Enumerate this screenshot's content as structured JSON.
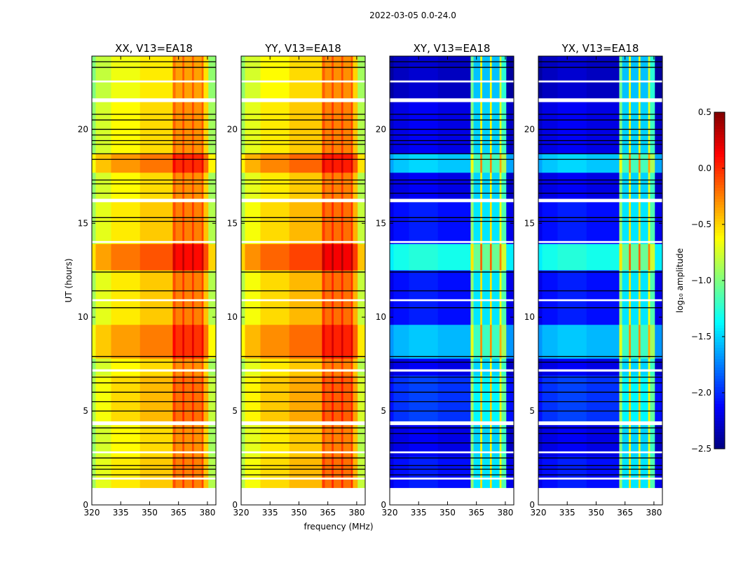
{
  "chart_data": {
    "type": "heatmap",
    "title": "2022-03-05 0.0-24.0",
    "xlabel": "frequency (MHz)",
    "ylabel": "UT (hours)",
    "xlim": [
      320,
      384.4
    ],
    "ylim": [
      0,
      23.9
    ],
    "xticks": [
      320,
      335,
      350,
      365,
      380
    ],
    "yticks": [
      0,
      5,
      10,
      15,
      20
    ],
    "panels": [
      {
        "title": "XX, V13=EA18",
        "kind": "parallel"
      },
      {
        "title": "YY, V13=EA18",
        "kind": "parallel"
      },
      {
        "title": "XY, V13=EA18",
        "kind": "cross"
      },
      {
        "title": "YX, V13=EA18",
        "kind": "cross"
      }
    ],
    "freq_edges": [
      320,
      322,
      330,
      345,
      362,
      363.5,
      367,
      368,
      372,
      373,
      377,
      378,
      380.5,
      384.4
    ],
    "levels": {
      "parallel": [
        -0.95,
        -0.75,
        -0.62,
        -0.52,
        -0.15,
        -0.3,
        -0.08,
        -0.3,
        -0.08,
        -0.3,
        -0.12,
        -0.5,
        -0.9
      ],
      "cross": [
        -2.3,
        -2.2,
        -2.15,
        -2.2,
        -1.0,
        -1.5,
        -0.6,
        -1.5,
        -0.6,
        -1.5,
        -0.7,
        -1.2,
        -2.3
      ]
    },
    "time_blocks": [
      [
        0.9,
        2.6,
        0.05
      ],
      [
        2.6,
        4.3,
        0.0
      ],
      [
        4.3,
        6.9,
        0.1
      ],
      [
        6.9,
        7.8,
        0.0
      ],
      [
        7.8,
        9.6,
        0.28
      ],
      [
        9.6,
        12.5,
        0.05
      ],
      [
        12.5,
        13.9,
        0.4
      ],
      [
        13.9,
        16.2,
        0.05
      ],
      [
        16.2,
        17.7,
        0.0
      ],
      [
        17.7,
        18.7,
        0.3
      ],
      [
        18.7,
        21.5,
        0.0
      ],
      [
        21.5,
        23.9,
        -0.05
      ]
    ],
    "flagged_hours": [
      [
        0,
        0.9
      ],
      [
        1.35,
        1.45
      ],
      [
        2.75,
        2.85
      ],
      [
        4.25,
        4.45
      ],
      [
        7.1,
        7.22
      ],
      [
        10.85,
        10.95
      ],
      [
        13.95,
        14.05
      ],
      [
        16.12,
        16.3
      ],
      [
        21.45,
        21.65
      ],
      [
        22.5,
        22.6
      ]
    ],
    "black_line_hours": [
      1.6,
      1.9,
      2.1,
      2.5,
      3.3,
      3.8,
      4.1,
      5.0,
      5.5,
      6.0,
      6.5,
      6.8,
      7.6,
      7.9,
      10.5,
      11.4,
      12.4,
      15.1,
      15.3,
      16.6,
      17.1,
      17.3,
      18.4,
      18.7,
      19.2,
      19.4,
      19.7,
      20.0,
      20.5,
      20.8,
      23.3,
      23.6
    ],
    "colorbar": {
      "label": "log₁₀ amplitude",
      "range": [
        -2.5,
        0.5
      ],
      "ticks": [
        "0.5",
        "0.0",
        "−0.5",
        "−1.0",
        "−1.5",
        "−2.0",
        "−2.5"
      ],
      "tick_values": [
        0.5,
        0.0,
        -0.5,
        -1.0,
        -1.5,
        -2.0,
        -2.5
      ],
      "colormap": "jet"
    }
  }
}
